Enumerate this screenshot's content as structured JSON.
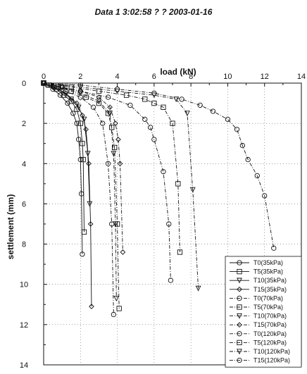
{
  "header_text": "Data 1 3:02:58 ? ?  2003-01-16",
  "chart_data": {
    "type": "line",
    "title": "",
    "xlabel": "load (kN)",
    "ylabel": "settlement (mm)",
    "xlim": [
      0,
      14
    ],
    "ylim": [
      14,
      0
    ],
    "x_ticks": [
      0,
      2,
      4,
      6,
      8,
      10,
      12,
      14
    ],
    "y_ticks": [
      0,
      2,
      4,
      6,
      8,
      10,
      12,
      14
    ],
    "grid": "dotted",
    "legend_position": "bottom-right",
    "series": [
      {
        "name": "T0(35kPa)",
        "marker": "circle",
        "dash": "solid",
        "x": [
          0,
          0.2,
          0.5,
          0.9,
          1.3,
          1.6,
          1.8,
          1.9,
          2.0,
          2.05,
          2.1
        ],
        "y": [
          0,
          0.1,
          0.3,
          0.6,
          1.0,
          1.5,
          2.0,
          2.8,
          3.8,
          5.5,
          8.5
        ]
      },
      {
        "name": "T5(35kPa)",
        "marker": "square",
        "dash": "solid",
        "x": [
          0,
          0.3,
          0.7,
          1.1,
          1.5,
          1.8,
          2.0,
          2.1,
          2.15,
          2.2
        ],
        "y": [
          0,
          0.1,
          0.3,
          0.6,
          0.9,
          1.3,
          2.0,
          3.0,
          3.8,
          7.4
        ]
      },
      {
        "name": "T10(35kPa)",
        "marker": "triangle-down",
        "dash": "solid",
        "x": [
          0,
          0.5,
          1.0,
          1.5,
          1.9,
          2.2,
          2.4,
          2.5
        ],
        "y": [
          0,
          0.2,
          0.4,
          0.8,
          1.2,
          1.8,
          3.5,
          6.0
        ]
      },
      {
        "name": "T15(35kPa)",
        "marker": "diamond",
        "dash": "solid",
        "x": [
          0,
          0.5,
          1.2,
          1.8,
          2.1,
          2.3,
          2.45,
          2.55,
          2.6
        ],
        "y": [
          0,
          0.2,
          0.5,
          1.0,
          1.6,
          2.3,
          4.0,
          7.0,
          11.1
        ]
      },
      {
        "name": "T0(70kPa)",
        "marker": "circle",
        "dash": "dashdot",
        "x": [
          0,
          0.6,
          1.2,
          2.0,
          2.7,
          3.2,
          3.5,
          3.7,
          3.8
        ],
        "y": [
          0,
          0.2,
          0.4,
          0.7,
          1.2,
          2.0,
          4.0,
          7.0,
          11.5
        ]
      },
      {
        "name": "T5(70kPa)",
        "marker": "square",
        "dash": "dashdot",
        "x": [
          0,
          0.8,
          1.5,
          2.3,
          3.0,
          3.5,
          3.7,
          3.85,
          4.0,
          4.1
        ],
        "y": [
          0,
          0.2,
          0.4,
          0.7,
          1.0,
          1.5,
          2.2,
          3.2,
          7.0,
          11.2
        ]
      },
      {
        "name": "T10(70kPa)",
        "marker": "triangle-down",
        "dash": "dashdot",
        "x": [
          0,
          1.0,
          2.0,
          3.0,
          3.6,
          3.8,
          3.9,
          3.95
        ],
        "y": [
          0,
          0.2,
          0.5,
          0.9,
          1.5,
          3.5,
          7.0,
          10.7
        ]
      },
      {
        "name": "T15(70kPa)",
        "marker": "diamond",
        "dash": "dashdot",
        "x": [
          0,
          1.0,
          2.0,
          3.0,
          3.6,
          3.9,
          4.05,
          4.15,
          4.3
        ],
        "y": [
          0,
          0.2,
          0.4,
          0.7,
          1.2,
          2.0,
          2.8,
          4.0,
          8.4
        ]
      },
      {
        "name": "T0(120kPa)",
        "marker": "circle",
        "dash": "dashdot",
        "x": [
          0,
          1.0,
          2.0,
          3.5,
          4.7,
          5.5,
          5.8,
          6.0,
          6.5,
          6.8,
          6.9
        ],
        "y": [
          0,
          0.2,
          0.4,
          0.7,
          1.1,
          1.8,
          2.2,
          2.8,
          4.4,
          7.0,
          9.8
        ]
      },
      {
        "name": "T5(120kPa)",
        "marker": "square",
        "dash": "dashdot",
        "x": [
          0,
          1.5,
          3.0,
          4.5,
          5.5,
          6.0,
          6.5,
          7.0,
          7.3,
          7.4
        ],
        "y": [
          0,
          0.2,
          0.4,
          0.6,
          0.8,
          1.0,
          1.2,
          2.0,
          5.0,
          8.4
        ]
      },
      {
        "name": "T10(120kPa)",
        "marker": "triangle-down",
        "dash": "dashdot",
        "x": [
          0,
          2.0,
          4.0,
          6.0,
          7.2,
          7.8,
          8.1,
          8.4
        ],
        "y": [
          0,
          0.2,
          0.4,
          0.6,
          0.8,
          1.5,
          5.3,
          10.2
        ]
      },
      {
        "name": "T15(120kPa)",
        "marker": "circle",
        "dash": "dashdot",
        "x": [
          0,
          2.0,
          4.0,
          6.0,
          7.5,
          8.5,
          9.2,
          10.0,
          10.5,
          10.8,
          11.1,
          11.6,
          12.0,
          12.5
        ],
        "y": [
          0,
          0.1,
          0.3,
          0.5,
          0.8,
          1.1,
          1.4,
          1.8,
          2.3,
          3.1,
          3.8,
          4.6,
          5.6,
          8.2
        ]
      }
    ]
  }
}
